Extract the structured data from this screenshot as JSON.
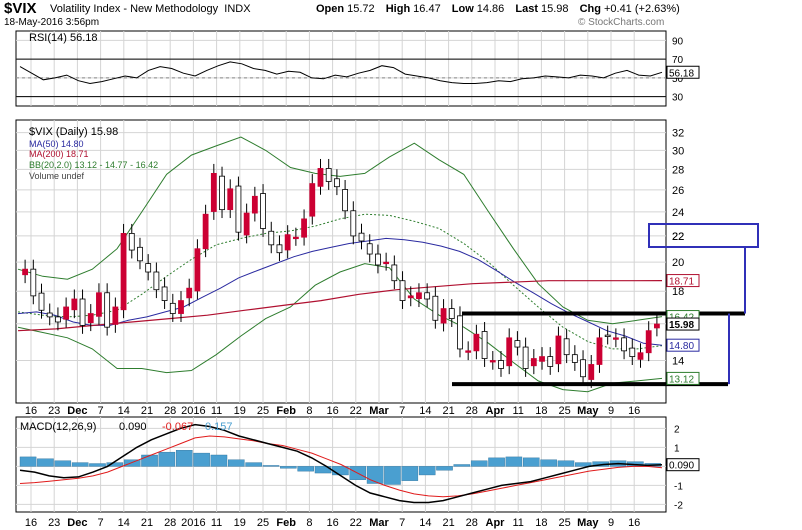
{
  "header": {
    "symbol": "$VIX",
    "name": "Volatility Index - New Methodology",
    "exchange": "INDX",
    "datetime": "18-May-2016 3:56pm",
    "open_label": "Open",
    "open_value": "15.72",
    "high_label": "High",
    "high_value": "16.47",
    "low_label": "Low",
    "low_value": "14.86",
    "last_label": "Last",
    "last_value": "15.98",
    "chg_label": "Chg",
    "chg_value": "+0.41 (+2.63%)",
    "copyright": "© StockCharts.com"
  },
  "chart_data": [
    {
      "type": "line",
      "panel": "rsi",
      "legend": "RSI(14) 56.18",
      "ylim": [
        20,
        100
      ],
      "yticks": [
        30,
        50,
        70,
        90
      ],
      "last_label": "56.18",
      "series": [
        {
          "name": "RSI(14)",
          "values": [
            62,
            55,
            48,
            50,
            53,
            47,
            44,
            46,
            49,
            52,
            50,
            58,
            62,
            60,
            55,
            52,
            58,
            63,
            67,
            65,
            60,
            58,
            54,
            57,
            56,
            50,
            49,
            53,
            51,
            55,
            58,
            63,
            61,
            54,
            52,
            50,
            47,
            45,
            44,
            44,
            45,
            47,
            46,
            49,
            50,
            52,
            51,
            50,
            53,
            52,
            50,
            55,
            58,
            53,
            52,
            56
          ]
        }
      ]
    },
    {
      "type": "candlestick",
      "panel": "price",
      "legend": [
        "$VIX (Daily) 15.98",
        "MA(50) 14.80",
        "MA(200) 18.71",
        "BB(20,2.0) 13.12 - 14.77 - 16.42",
        "Volume undef"
      ],
      "ylim": [
        12.0,
        33.5
      ],
      "log_scale": true,
      "yticks": [
        14,
        16,
        18,
        20,
        22,
        24,
        26,
        28,
        30,
        32
      ],
      "price_labels": [
        "18.71",
        "16.42",
        "15.98",
        "14.80",
        "13.12"
      ],
      "annotation_label": "22",
      "x_tick_labels": [
        "16",
        "23",
        "Dec",
        "7",
        "14",
        "21",
        "28",
        "2016",
        "11",
        "19",
        "25",
        "Feb",
        "8",
        "16",
        "22",
        "Mar",
        "7",
        "14",
        "21",
        "28",
        "Apr",
        "11",
        "18",
        "25",
        "May",
        "9",
        "16"
      ],
      "close": [
        19.5,
        17.7,
        16.8,
        16.4,
        16.1,
        17.0,
        17.5,
        15.9,
        16.6,
        17.9,
        15.8,
        17.0,
        22.2,
        20.9,
        20.1,
        19.3,
        18.1,
        17.4,
        16.6,
        17.4,
        18.2,
        21.0,
        23.8,
        27.6,
        24.2,
        26.1,
        22.3,
        23.9,
        25.4,
        22.6,
        21.3,
        20.7,
        22.1,
        21.9,
        23.4,
        26.6,
        28.1,
        26.8,
        26.3,
        24.1,
        22.0,
        21.6,
        20.6,
        19.8,
        20.0,
        18.7,
        17.4,
        17.7,
        17.9,
        17.5,
        16.2,
        16.9,
        16.3,
        14.6,
        14.5,
        15.4,
        14.1,
        14.0,
        13.6,
        15.2,
        14.7,
        13.6,
        14.1,
        14.2,
        13.7,
        15.3,
        14.3,
        13.9,
        13.2,
        13.8,
        15.2,
        15.3,
        15.2,
        14.5,
        14.2,
        14.4,
        15.6,
        15.98
      ],
      "ma50": [
        16.6,
        16.7,
        16.5,
        16.1,
        15.9,
        15.9,
        16.2,
        16.4,
        16.7,
        17.0,
        17.6,
        18.2,
        18.9,
        19.4,
        19.9,
        20.4,
        20.8,
        21.1,
        21.4,
        21.6,
        21.8,
        21.7,
        21.5,
        21.2,
        20.8,
        20.2,
        19.4,
        18.6,
        17.9,
        17.2,
        16.6,
        16.1,
        15.6,
        15.3,
        14.9,
        14.8
      ],
      "ma200": [
        15.6,
        15.7,
        15.9,
        16.1,
        16.3,
        16.5,
        16.8,
        17.1,
        17.4,
        17.8,
        18.1,
        18.3,
        18.5,
        18.6,
        18.7,
        18.7,
        18.7,
        18.71
      ],
      "bb_upper": [
        19.5,
        19.0,
        18.8,
        19.5,
        21.0,
        24.0,
        27.5,
        29.5,
        30.5,
        31.5,
        30.0,
        28.2,
        27.6,
        27.3,
        27.6,
        29.3,
        30.8,
        29.0,
        27.5,
        24.0,
        21.0,
        18.5,
        17.0,
        16.2,
        16.0,
        16.2,
        16.42
      ],
      "bb_mid": [
        16.7,
        16.5,
        16.4,
        16.5,
        16.8,
        17.8,
        19.0,
        20.2,
        21.3,
        21.8,
        22.2,
        22.4,
        22.8,
        23.4,
        23.8,
        23.7,
        23.2,
        22.6,
        21.4,
        20.0,
        18.4,
        17.0,
        15.8,
        15.0,
        14.6,
        14.6,
        14.77
      ],
      "bb_lower": [
        15.8,
        15.5,
        15.2,
        14.6,
        13.6,
        13.6,
        13.4,
        13.5,
        14.3,
        15.3,
        16.3,
        17.0,
        18.4,
        19.3,
        19.9,
        19.6,
        17.5,
        16.5,
        15.8,
        14.9,
        13.9,
        13.0,
        12.6,
        12.5,
        12.9,
        13.0,
        13.12
      ]
    },
    {
      "type": "line",
      "panel": "macd",
      "legend": [
        "MACD(12,26,9)",
        "0.090",
        "-0.067",
        "0.157"
      ],
      "ylim": [
        -2.4,
        2.6
      ],
      "yticks": [
        -2,
        -1,
        0,
        1,
        2
      ],
      "last_label": "0.090",
      "series": [
        {
          "name": "MACD",
          "values": [
            -0.2,
            -0.3,
            -0.5,
            -0.6,
            -0.55,
            -0.3,
            0.0,
            0.5,
            1.0,
            1.4,
            1.7,
            2.0,
            2.2,
            2.1,
            1.9,
            1.6,
            1.4,
            1.2,
            1.0,
            0.8,
            0.45,
            0.0,
            -0.5,
            -1.0,
            -1.4,
            -1.6,
            -1.8,
            -1.9,
            -1.9,
            -1.8,
            -1.6,
            -1.4,
            -1.2,
            -1.0,
            -0.9,
            -0.8,
            -0.6,
            -0.4,
            -0.2,
            0.0,
            0.1,
            0.15,
            0.1,
            0.05,
            0.09
          ]
        },
        {
          "name": "Signal",
          "values": [
            -0.9,
            -0.85,
            -0.78,
            -0.7,
            -0.62,
            -0.5,
            -0.3,
            0.0,
            0.3,
            0.6,
            0.9,
            1.2,
            1.5,
            1.6,
            1.55,
            1.45,
            1.35,
            1.2,
            1.1,
            0.9,
            0.7,
            0.4,
            0.1,
            -0.3,
            -0.7,
            -1.0,
            -1.25,
            -1.45,
            -1.55,
            -1.6,
            -1.55,
            -1.45,
            -1.3,
            -1.15,
            -1.0,
            -0.85,
            -0.7,
            -0.55,
            -0.4,
            -0.25,
            -0.15,
            -0.05,
            0.0,
            0.0,
            -0.067
          ]
        },
        {
          "name": "Histogram",
          "values": [
            0.5,
            0.4,
            0.3,
            0.2,
            0.15,
            0.2,
            0.35,
            0.6,
            0.75,
            0.85,
            0.7,
            0.6,
            0.35,
            0.2,
            0.05,
            -0.1,
            -0.25,
            -0.35,
            -0.45,
            -0.7,
            -0.9,
            -0.95,
            -0.75,
            -0.45,
            -0.2,
            0.1,
            0.3,
            0.45,
            0.5,
            0.45,
            0.35,
            0.3,
            0.2,
            0.25,
            0.3,
            0.25,
            0.157
          ]
        }
      ]
    }
  ],
  "palette": {
    "up_candle": "#ffffff",
    "down_candle": "#cc0033",
    "ma50": "#2a2aa0",
    "ma200": "#b01030",
    "bb": "#2e7d2e",
    "macd": "#000000",
    "signal": "#e01b1b",
    "histogram": "#4a9fd0",
    "annotation": "#3030b8",
    "grid": "#d4d4d4"
  }
}
